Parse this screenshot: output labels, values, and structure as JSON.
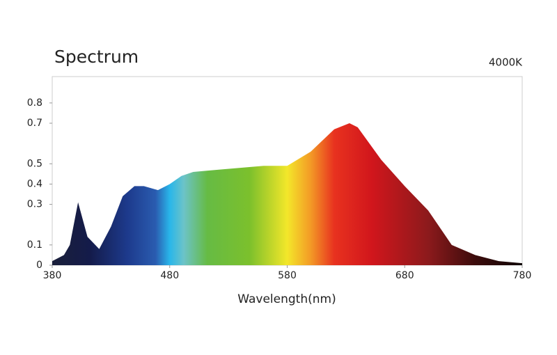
{
  "chart_data": {
    "type": "area",
    "title": "Spectrum",
    "subtitle": "4000K",
    "x_label": "Wavelength(nm)",
    "x": [
      380,
      390,
      395,
      402,
      410,
      420,
      430,
      440,
      450,
      458,
      470,
      480,
      490,
      500,
      520,
      540,
      560,
      580,
      600,
      620,
      633,
      640,
      660,
      680,
      700,
      720,
      740,
      760,
      780
    ],
    "values": [
      0.02,
      0.05,
      0.1,
      0.31,
      0.14,
      0.08,
      0.19,
      0.34,
      0.39,
      0.39,
      0.37,
      0.4,
      0.44,
      0.46,
      0.47,
      0.48,
      0.49,
      0.49,
      0.56,
      0.67,
      0.7,
      0.68,
      0.52,
      0.39,
      0.27,
      0.1,
      0.05,
      0.02,
      0.01
    ],
    "xlim": [
      380,
      780
    ],
    "xticks": [
      380,
      480,
      580,
      680,
      780
    ],
    "ylim": [
      0,
      0.93
    ],
    "yticks": [
      0.0,
      0.1,
      0.3,
      0.4,
      0.5,
      0.7,
      0.8
    ]
  }
}
